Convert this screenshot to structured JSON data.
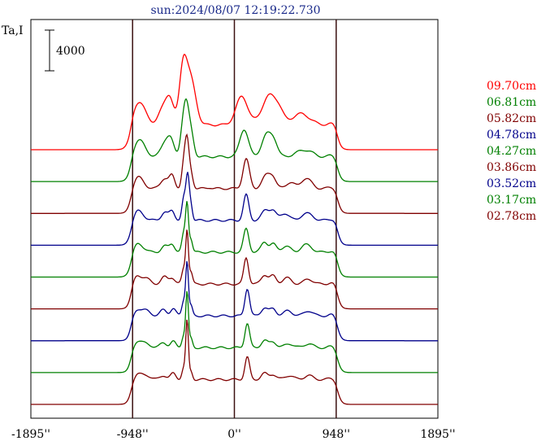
{
  "chart_data": {
    "type": "line",
    "title": "sun:2024/08/07 12:19:22.730",
    "ylabel": "Ta,I",
    "scale_bar_label": "4000",
    "xlim": [
      -1895,
      1895
    ],
    "x_ticks": [
      {
        "value": -1895,
        "label": "-1895''"
      },
      {
        "value": -948,
        "label": "-948''"
      },
      {
        "value": 0,
        "label": "0''"
      },
      {
        "value": 948,
        "label": "948''"
      },
      {
        "value": 1895,
        "label": "1895''"
      }
    ],
    "vertical_lines": [
      -948,
      0,
      948
    ],
    "baseline_step_intensity": 3000,
    "series": [
      {
        "name": "09.70cm",
        "color": "#ff0000",
        "peaks": [
          [
            -890,
            60,
            2300
          ],
          [
            -660,
            45,
            1600
          ],
          [
            -600,
            35,
            2200
          ],
          [
            -480,
            32,
            3500
          ],
          [
            -440,
            50,
            4200
          ],
          [
            -380,
            40,
            1800
          ],
          [
            70,
            55,
            2800
          ],
          [
            330,
            70,
            2900
          ],
          [
            420,
            40,
            700
          ],
          [
            620,
            80,
            1100
          ],
          [
            930,
            40,
            250
          ]
        ]
      },
      {
        "name": "06.81cm",
        "color": "#008000",
        "peaks": [
          [
            -890,
            55,
            1700
          ],
          [
            -640,
            40,
            1500
          ],
          [
            -590,
            30,
            1200
          ],
          [
            -480,
            25,
            2600
          ],
          [
            -445,
            25,
            4200
          ],
          [
            -400,
            25,
            2000
          ],
          [
            90,
            40,
            2700
          ],
          [
            300,
            45,
            2100
          ],
          [
            370,
            35,
            1300
          ],
          [
            620,
            60,
            500
          ],
          [
            700,
            50,
            350
          ],
          [
            930,
            40,
            250
          ]
        ]
      },
      {
        "name": "05.82cm",
        "color": "#800000",
        "peaks": [
          [
            -900,
            50,
            1200
          ],
          [
            -650,
            35,
            1000
          ],
          [
            -580,
            25,
            1200
          ],
          [
            -470,
            20,
            2500
          ],
          [
            -440,
            18,
            4000
          ],
          [
            -405,
            20,
            1500
          ],
          [
            -230,
            20,
            100
          ],
          [
            110,
            30,
            2900
          ],
          [
            300,
            40,
            1300
          ],
          [
            360,
            30,
            900
          ],
          [
            520,
            40,
            600
          ],
          [
            650,
            40,
            700
          ],
          [
            700,
            40,
            500
          ],
          [
            930,
            40,
            250
          ]
        ]
      },
      {
        "name": "04.78cm",
        "color": "#00008b",
        "peaks": [
          [
            -900,
            50,
            1000
          ],
          [
            -650,
            30,
            800
          ],
          [
            -580,
            25,
            900
          ],
          [
            -470,
            18,
            2200
          ],
          [
            -435,
            15,
            4200
          ],
          [
            -405,
            15,
            1500
          ],
          [
            110,
            25,
            2500
          ],
          [
            290,
            35,
            1000
          ],
          [
            360,
            30,
            900
          ],
          [
            470,
            40,
            700
          ],
          [
            650,
            40,
            500
          ],
          [
            710,
            40,
            400
          ],
          [
            930,
            40,
            250
          ]
        ]
      },
      {
        "name": "04.27cm",
        "color": "#008000",
        "peaks": [
          [
            -900,
            50,
            900
          ],
          [
            -650,
            30,
            600
          ],
          [
            -580,
            25,
            800
          ],
          [
            -470,
            18,
            1900
          ],
          [
            -440,
            13,
            4500
          ],
          [
            -405,
            15,
            1300
          ],
          [
            110,
            25,
            2300
          ],
          [
            280,
            30,
            1000
          ],
          [
            360,
            30,
            800
          ],
          [
            480,
            40,
            600
          ],
          [
            650,
            40,
            500
          ],
          [
            700,
            40,
            400
          ],
          [
            930,
            40,
            250
          ]
        ]
      },
      {
        "name": "03.86cm",
        "color": "#800000",
        "peaks": [
          [
            -910,
            40,
            900
          ],
          [
            -820,
            40,
            500
          ],
          [
            -650,
            30,
            700
          ],
          [
            -580,
            25,
            600
          ],
          [
            -470,
            18,
            1600
          ],
          [
            -440,
            12,
            5000
          ],
          [
            -405,
            15,
            1200
          ],
          [
            110,
            22,
            2600
          ],
          [
            280,
            30,
            900
          ],
          [
            360,
            30,
            800
          ],
          [
            490,
            40,
            600
          ],
          [
            690,
            40,
            500
          ],
          [
            930,
            40,
            250
          ]
        ]
      },
      {
        "name": "03.52cm",
        "color": "#00008b",
        "peaks": [
          [
            -910,
            40,
            700
          ],
          [
            -820,
            40,
            500
          ],
          [
            -660,
            30,
            600
          ],
          [
            -570,
            25,
            700
          ],
          [
            -470,
            18,
            1600
          ],
          [
            -440,
            12,
            5000
          ],
          [
            -405,
            15,
            1000
          ],
          [
            120,
            22,
            2700
          ],
          [
            280,
            30,
            800
          ],
          [
            360,
            30,
            700
          ],
          [
            500,
            40,
            500
          ],
          [
            690,
            40,
            500
          ],
          [
            930,
            40,
            250
          ]
        ]
      },
      {
        "name": "03.17cm",
        "color": "#008000",
        "peaks": [
          [
            -910,
            40,
            700
          ],
          [
            -820,
            40,
            400
          ],
          [
            -660,
            30,
            500
          ],
          [
            -570,
            25,
            600
          ],
          [
            -470,
            18,
            1300
          ],
          [
            -440,
            12,
            5200
          ],
          [
            -405,
            15,
            900
          ],
          [
            120,
            22,
            2400
          ],
          [
            280,
            30,
            700
          ],
          [
            360,
            30,
            600
          ],
          [
            510,
            40,
            400
          ],
          [
            690,
            40,
            400
          ],
          [
            930,
            40,
            250
          ]
        ]
      },
      {
        "name": "02.78cm",
        "color": "#800000",
        "peaks": [
          [
            -910,
            40,
            600
          ],
          [
            -820,
            40,
            400
          ],
          [
            -660,
            30,
            400
          ],
          [
            -570,
            25,
            600
          ],
          [
            -470,
            18,
            1200
          ],
          [
            -440,
            12,
            5500
          ],
          [
            -405,
            15,
            800
          ],
          [
            120,
            22,
            2200
          ],
          [
            280,
            30,
            600
          ],
          [
            360,
            30,
            500
          ],
          [
            510,
            40,
            400
          ],
          [
            690,
            40,
            400
          ],
          [
            930,
            40,
            250
          ]
        ]
      }
    ]
  }
}
